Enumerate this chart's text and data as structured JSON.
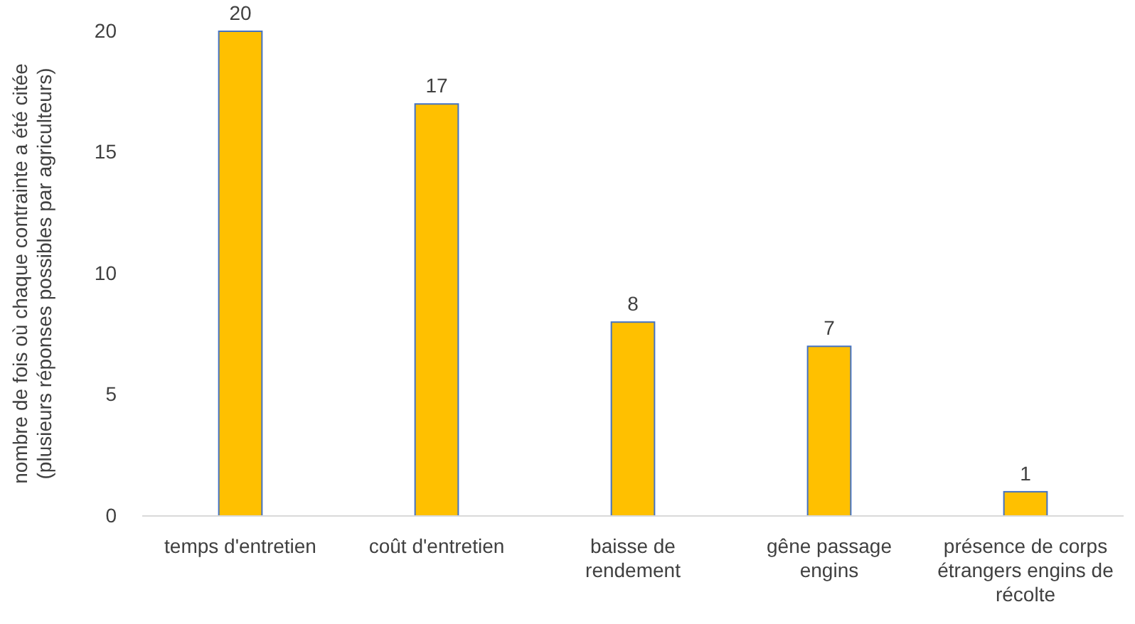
{
  "chart_data": {
    "type": "bar",
    "ylabel": "nombre de fois où chaque  contrainte a été citée\n(plusieurs réponses possibles par agriculteurs)",
    "categories": [
      "temps d'entretien",
      "coût d'entretien",
      "baisse de rendement",
      "gêne passage engins",
      "présence de corps étrangers engins de récolte"
    ],
    "values": [
      20,
      17,
      8,
      7,
      1
    ],
    "color": "#ffc000",
    "ylim": [
      0,
      20
    ],
    "yticks": [
      0,
      5,
      10,
      15,
      20
    ],
    "grid": false,
    "data_labels": true
  }
}
